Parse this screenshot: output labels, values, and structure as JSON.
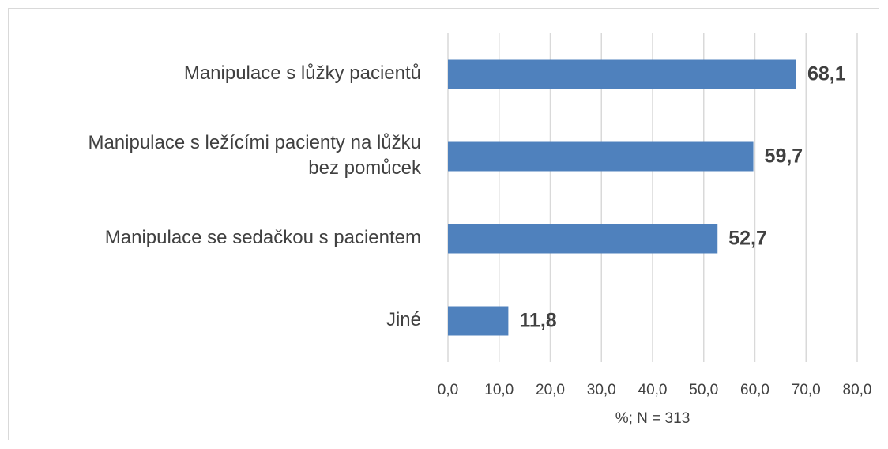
{
  "chart_data": {
    "type": "bar",
    "orientation": "horizontal",
    "categories": [
      "Manipulace s lůžky pacientů",
      "Manipulace s ležícími pacienty na lůžku bez pomůcek",
      "Manipulace se sedačkou s pacientem",
      "Jiné"
    ],
    "values": [
      68.1,
      59.7,
      52.7,
      11.8
    ],
    "value_labels": [
      "68,1",
      "59,7",
      "52,7",
      "11,8"
    ],
    "color": "#4f81bd",
    "x_label": "%; N = 313",
    "xlim": [
      0,
      80
    ],
    "xticks": [
      {
        "value": 0,
        "label": "0,0"
      },
      {
        "value": 10,
        "label": "10,0"
      },
      {
        "value": 20,
        "label": "20,0"
      },
      {
        "value": 30,
        "label": "30,0"
      },
      {
        "value": 40,
        "label": "40,0"
      },
      {
        "value": 50,
        "label": "50,0"
      },
      {
        "value": 60,
        "label": "60,0"
      },
      {
        "value": 70,
        "label": "70,0"
      },
      {
        "value": 80,
        "label": "80,0"
      }
    ],
    "grid": true
  }
}
